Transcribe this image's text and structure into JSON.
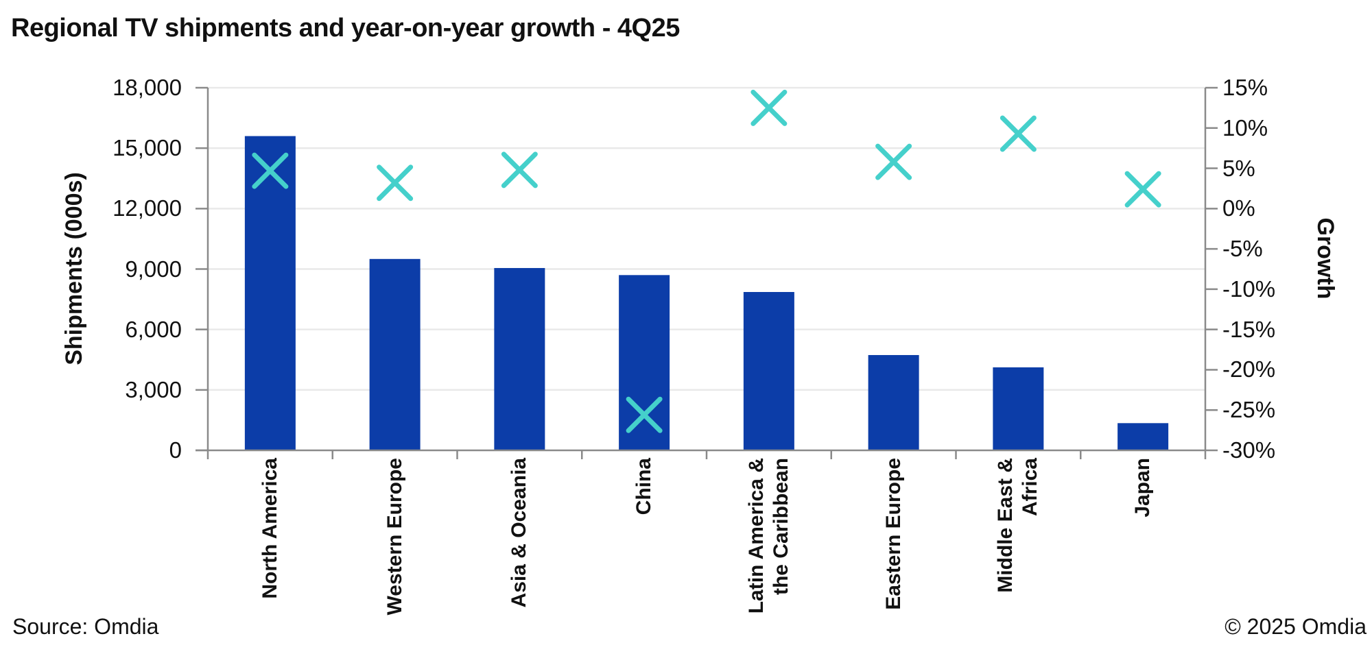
{
  "title": "Regional TV shipments and year-on-year growth - 4Q25",
  "footer": {
    "source": "Source: Omdia",
    "copyright": "© 2025 Omdia"
  },
  "chart_data": {
    "type": "bar",
    "subtype": "combo-bar-with-x-markers",
    "title": "Regional TV shipments and year-on-year growth - 4Q25",
    "categories": [
      "North America",
      "Western Europe",
      "Asia & Oceania",
      "China",
      "Latin America & the Caribbean",
      "Eastern Europe",
      "Middle East & Africa",
      "Japan"
    ],
    "category_label_lines": [
      [
        "North America"
      ],
      [
        "Western Europe"
      ],
      [
        "Asia & Oceania"
      ],
      [
        "China"
      ],
      [
        "Latin America &",
        "the Caribbean"
      ],
      [
        "Eastern Europe"
      ],
      [
        "Middle East &",
        "Africa"
      ],
      [
        "Japan"
      ]
    ],
    "series": [
      {
        "name": "Shipments (000s)",
        "type": "bar",
        "axis": "left",
        "color": "#0C3DA8",
        "values": [
          15600,
          9500,
          9050,
          8700,
          7860,
          4730,
          4120,
          1350
        ]
      },
      {
        "name": "Growth",
        "type": "scatter",
        "marker": "x",
        "axis": "right",
        "color": "#45D0CB",
        "values": [
          4.7,
          3.2,
          4.8,
          -25.6,
          12.5,
          5.8,
          9.3,
          2.4
        ]
      }
    ],
    "axes": {
      "left": {
        "label": "Shipments (000s)",
        "min": 0,
        "max": 18000,
        "step": 3000,
        "tick_labels": [
          "18,000",
          "15,000",
          "12,000",
          "9,000",
          "6,000",
          "3,000",
          "0"
        ]
      },
      "right": {
        "label": "Growth",
        "min": -30,
        "max": 15,
        "step": 5,
        "tick_labels": [
          "15%",
          "10%",
          "5%",
          "0%",
          "-5%",
          "-10%",
          "-15%",
          "-20%",
          "-25%",
          "-30%"
        ]
      }
    },
    "grid": {
      "horizontal": true,
      "color": "#E9E9E9"
    },
    "legend": "none",
    "axis_color": "#8A8A8A",
    "text_color": "#111111",
    "background": "#FFFFFF"
  }
}
